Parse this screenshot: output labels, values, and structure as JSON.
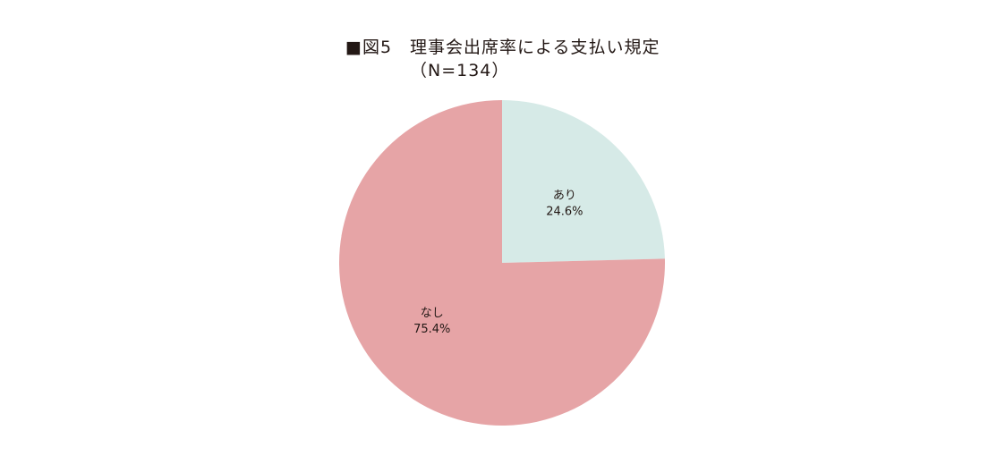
{
  "chart_data": {
    "type": "pie",
    "title": "■図5　理事会出席率による支払い規定",
    "subtitle": "（N=134）",
    "start_angle": "top, clockwise",
    "slices": [
      {
        "label": "あり",
        "value": 24.6,
        "value_label": "24.6%",
        "color": "#d6eae7"
      },
      {
        "label": "なし",
        "value": 75.4,
        "value_label": "75.4%",
        "color": "#e6a4a6"
      }
    ]
  }
}
